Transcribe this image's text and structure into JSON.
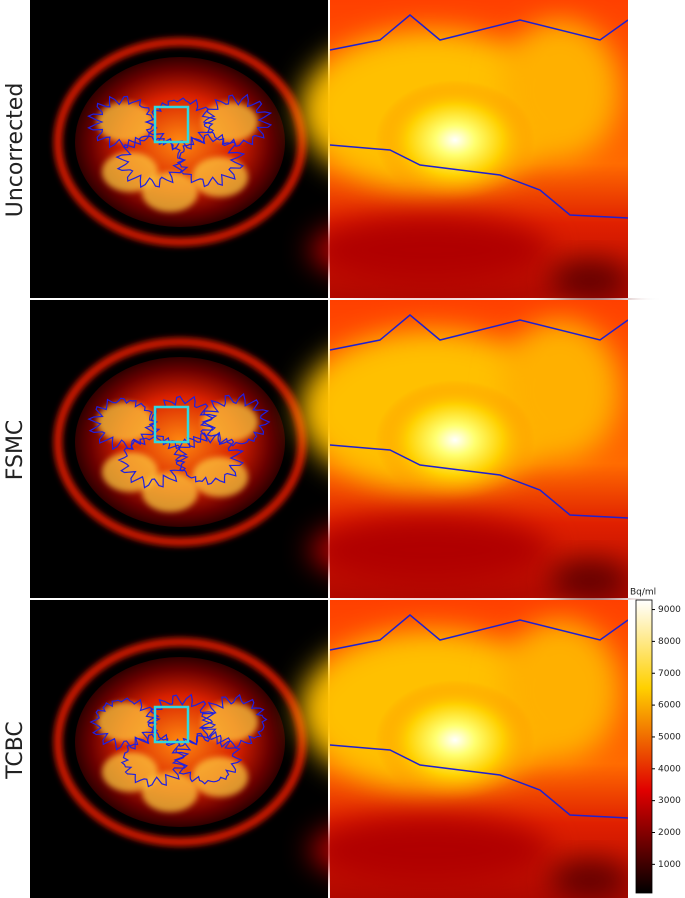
{
  "rows": [
    {
      "label": "Uncorrected"
    },
    {
      "label": "FSMC"
    },
    {
      "label": "TCBC"
    }
  ],
  "colorbar": {
    "unit": "Bq/ml",
    "lim": [
      100,
      9300
    ],
    "ticks": [
      1000,
      2000,
      3000,
      4000,
      5000,
      6000,
      7000,
      8000,
      9000
    ]
  }
}
